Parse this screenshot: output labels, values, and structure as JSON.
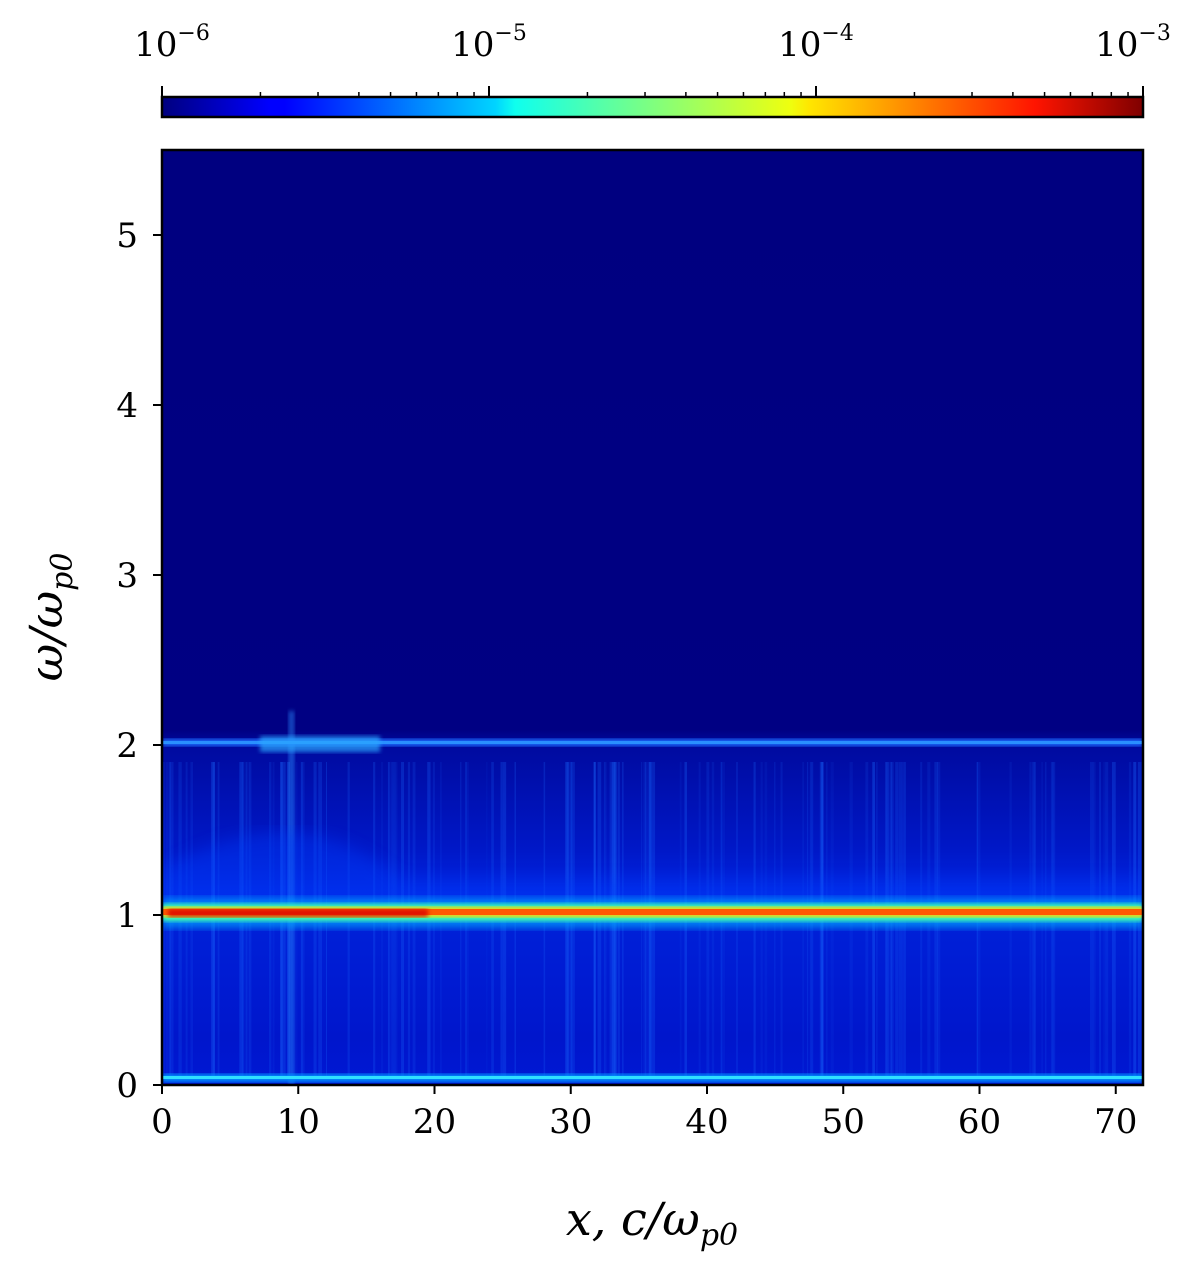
{
  "chart_data": {
    "type": "heatmap",
    "title": "",
    "xlabel": {
      "main": "x, c/ω",
      "subscript": "p0"
    },
    "ylabel": {
      "main": "ω/ω",
      "subscript": "p0"
    },
    "xlim": [
      0,
      72
    ],
    "ylim": [
      0,
      5.5
    ],
    "xticks": [
      0,
      10,
      20,
      30,
      40,
      50,
      60,
      70
    ],
    "yticks": [
      0,
      1,
      2,
      3,
      4,
      5
    ],
    "colorbar": {
      "orientation": "horizontal",
      "placement": "top",
      "scale": "log",
      "range": [
        1e-06,
        0.001
      ],
      "colormap": "jet",
      "tick_labels": [
        {
          "base": "10",
          "exponent": "−6"
        },
        {
          "base": "10",
          "exponent": "−5"
        },
        {
          "base": "10",
          "exponent": "−4"
        },
        {
          "base": "10",
          "exponent": "−3"
        }
      ]
    },
    "background_level": 1e-06,
    "features": [
      {
        "omega": 0.03,
        "level": 2e-05,
        "note": "low-frequency band"
      },
      {
        "omega": 1.0,
        "level": 0.0006,
        "note": "plasma frequency line"
      },
      {
        "omega": 2.03,
        "level": 2e-05,
        "note": "second harmonic line"
      }
    ],
    "grid": false,
    "legend": "none"
  },
  "colors": {
    "jet_low": "#00007f",
    "jet_mid": "#7fff7f",
    "jet_high": "#7f0000"
  }
}
